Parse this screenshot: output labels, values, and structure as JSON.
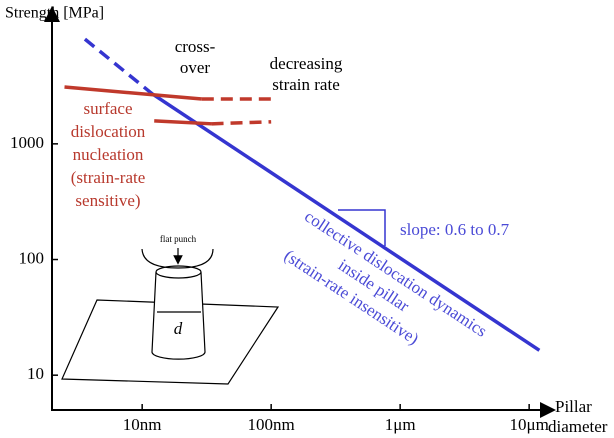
{
  "chart_data": {
    "type": "line",
    "y_label": "Strength [MPa]",
    "x_label": [
      "Pillar",
      "diameter"
    ],
    "log_x": true,
    "log_y": true,
    "xlim": [
      2,
      14000
    ],
    "ylim": [
      5,
      13000
    ],
    "xticks": [
      {
        "value": 10,
        "label": "10nm"
      },
      {
        "value": 100,
        "label": "100nm"
      },
      {
        "value": 1000,
        "label": "1μm"
      },
      {
        "value": 10000,
        "label": "10μm"
      }
    ],
    "yticks": [
      10,
      100,
      1000
    ],
    "series": [
      {
        "color": "#3535d0",
        "dash": true,
        "x": [
          3.6,
          12
        ],
        "values": [
          8040,
          2700
        ]
      },
      {
        "color": "#3535d0",
        "dash": false,
        "x": [
          12,
          12000
        ],
        "values": [
          2700,
          16.4
        ]
      },
      {
        "color": "#c0392b",
        "dash": false,
        "x": [
          2.5,
          29
        ],
        "values": [
          3100,
          2440
        ]
      },
      {
        "color": "#c0392b",
        "dash": true,
        "x": [
          29,
          100
        ],
        "values": [
          2440,
          2440
        ]
      },
      {
        "color": "#c0392b",
        "dash": false,
        "x": [
          12.4,
          34.5
        ],
        "values": [
          1580,
          1490
        ]
      },
      {
        "color": "#c0392b",
        "dash": true,
        "x": [
          34.5,
          100
        ],
        "values": [
          1490,
          1550
        ]
      }
    ],
    "annotations": {
      "crossover": [
        "cross-",
        "over"
      ],
      "decreasing": [
        "decreasing",
        "strain rate"
      ],
      "surface": [
        "surface",
        "dislocation",
        "nucleation",
        "(strain-rate",
        "sensitive)"
      ],
      "collective": [
        "collective dislocation dynamics",
        "inside pillar",
        "(strain-rate insensitive)"
      ],
      "slope": "slope: 0.6 to 0.7",
      "punch": "flat punch",
      "diameter": "d"
    }
  }
}
